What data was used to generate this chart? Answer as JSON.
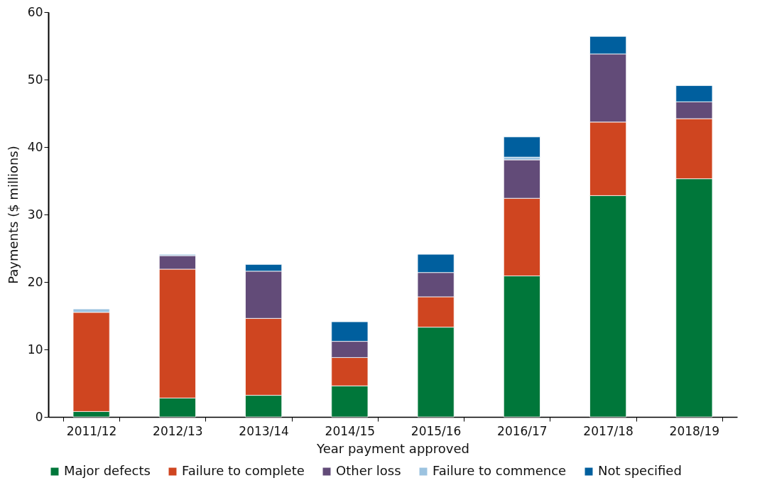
{
  "chart_data": {
    "type": "bar",
    "stacked": true,
    "xlabel": "Year payment approved",
    "ylabel": "Payments ($ millions)",
    "categories": [
      "2011/12",
      "2012/13",
      "2013/14",
      "2014/15",
      "2015/16",
      "2016/17",
      "2017/18",
      "2018/19"
    ],
    "series": [
      {
        "name": "Major defects",
        "color": "#00773a",
        "values": [
          0.8,
          2.8,
          3.2,
          4.6,
          13.3,
          20.9,
          32.8,
          35.3
        ]
      },
      {
        "name": "Failure to complete",
        "color": "#cf4520",
        "values": [
          14.7,
          19.1,
          11.4,
          4.2,
          4.5,
          11.5,
          10.9,
          8.9
        ]
      },
      {
        "name": "Other loss",
        "color": "#624b78",
        "values": [
          0,
          2.0,
          7.0,
          2.4,
          3.6,
          5.7,
          10.1,
          2.5
        ]
      },
      {
        "name": "Failure to commence",
        "color": "#9cc3e0",
        "values": [
          0.5,
          0.2,
          0,
          0,
          0,
          0.4,
          0,
          0
        ]
      },
      {
        "name": "Not specified",
        "color": "#005f9e",
        "values": [
          0,
          0,
          1.0,
          2.9,
          2.7,
          3.0,
          2.6,
          2.4
        ]
      }
    ],
    "ylim": [
      0,
      60
    ],
    "yticks": [
      0,
      10,
      20,
      30,
      40,
      50,
      60
    ],
    "grid": false,
    "legend": "bottom"
  }
}
